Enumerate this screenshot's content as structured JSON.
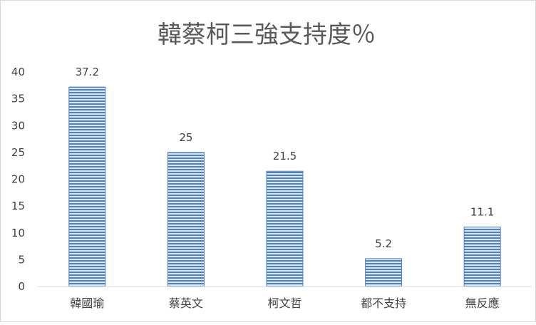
{
  "chart_data": {
    "type": "bar",
    "title": "韓蔡柯三強支持度％",
    "xlabel": "",
    "ylabel": "",
    "categories": [
      "韓國瑜",
      "蔡英文",
      "柯文哲",
      "都不支持",
      "無反應"
    ],
    "values": [
      37.2,
      25,
      21.5,
      5.2,
      11.1
    ],
    "data_labels": [
      "37.2",
      "25",
      "21.5",
      "5.2",
      "11.1"
    ],
    "ylim": [
      0,
      40
    ],
    "yticks": [
      0,
      5,
      10,
      15,
      20,
      25,
      30,
      35,
      40
    ],
    "grid": false,
    "legend": "none",
    "bar_color": "#4f81bd",
    "bar_fill": "horizontal-stripes"
  }
}
